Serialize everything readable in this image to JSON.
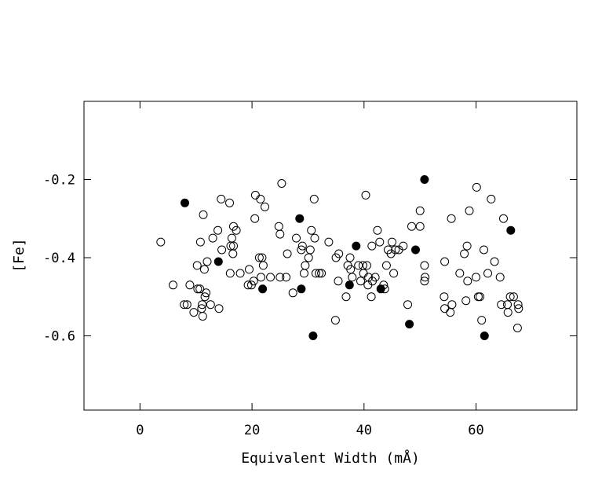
{
  "chart_data": {
    "type": "scatter",
    "title": "",
    "xlabel": "Equivalent Width (mÅ)",
    "ylabel": "[Fe]",
    "xlim": [
      -10,
      78
    ],
    "ylim": [
      -0.79,
      0.0
    ],
    "xticks": [
      0,
      20,
      40,
      60
    ],
    "yticks": [
      -0.2,
      -0.4,
      -0.6
    ],
    "xtick_labels": [
      "0",
      "20",
      "40",
      "60"
    ],
    "ytick_labels": [
      "-0.2",
      "-0.4",
      "-0.6"
    ],
    "grid": false,
    "legend": "none",
    "series": [
      {
        "marker": "open-circle",
        "points": [
          [
            3.7,
            -0.36
          ],
          [
            5.9,
            -0.47
          ],
          [
            7.9,
            -0.52
          ],
          [
            8.4,
            -0.52
          ],
          [
            8.9,
            -0.47
          ],
          [
            9.6,
            -0.54
          ],
          [
            10.2,
            -0.42
          ],
          [
            10.3,
            -0.48
          ],
          [
            10.8,
            -0.36
          ],
          [
            10.7,
            -0.48
          ],
          [
            11.0,
            -0.53
          ],
          [
            11.2,
            -0.55
          ],
          [
            11.3,
            -0.29
          ],
          [
            11.5,
            -0.43
          ],
          [
            11.1,
            -0.52
          ],
          [
            11.6,
            -0.5
          ],
          [
            11.8,
            -0.49
          ],
          [
            12.0,
            -0.41
          ],
          [
            12.6,
            -0.52
          ],
          [
            13.0,
            -0.35
          ],
          [
            13.9,
            -0.33
          ],
          [
            14.1,
            -0.53
          ],
          [
            14.5,
            -0.25
          ],
          [
            14.6,
            -0.38
          ],
          [
            16.0,
            -0.26
          ],
          [
            16.1,
            -0.44
          ],
          [
            16.2,
            -0.37
          ],
          [
            16.4,
            -0.35
          ],
          [
            16.6,
            -0.39
          ],
          [
            16.7,
            -0.37
          ],
          [
            16.7,
            -0.32
          ],
          [
            17.2,
            -0.33
          ],
          [
            17.9,
            -0.44
          ],
          [
            19.3,
            -0.47
          ],
          [
            19.5,
            -0.43
          ],
          [
            19.9,
            -0.47
          ],
          [
            20.3,
            -0.46
          ],
          [
            20.5,
            -0.3
          ],
          [
            20.6,
            -0.24
          ],
          [
            21.3,
            -0.4
          ],
          [
            21.5,
            -0.25
          ],
          [
            21.6,
            -0.45
          ],
          [
            21.8,
            -0.4
          ],
          [
            22.0,
            -0.42
          ],
          [
            22.3,
            -0.27
          ],
          [
            23.3,
            -0.45
          ],
          [
            24.8,
            -0.32
          ],
          [
            25.0,
            -0.34
          ],
          [
            25.0,
            -0.45
          ],
          [
            25.3,
            -0.21
          ],
          [
            26.1,
            -0.45
          ],
          [
            26.3,
            -0.39
          ],
          [
            27.3,
            -0.49
          ],
          [
            27.9,
            -0.35
          ],
          [
            28.8,
            -0.38
          ],
          [
            29.0,
            -0.37
          ],
          [
            29.3,
            -0.44
          ],
          [
            29.5,
            -0.42
          ],
          [
            30.1,
            -0.4
          ],
          [
            30.4,
            -0.38
          ],
          [
            30.6,
            -0.33
          ],
          [
            31.1,
            -0.25
          ],
          [
            31.2,
            -0.35
          ],
          [
            31.4,
            -0.44
          ],
          [
            32.0,
            -0.44
          ],
          [
            32.4,
            -0.44
          ],
          [
            33.7,
            -0.36
          ],
          [
            34.9,
            -0.56
          ],
          [
            35.0,
            -0.4
          ],
          [
            35.4,
            -0.46
          ],
          [
            35.5,
            -0.39
          ],
          [
            36.8,
            -0.5
          ],
          [
            37.1,
            -0.42
          ],
          [
            37.5,
            -0.4
          ],
          [
            37.6,
            -0.43
          ],
          [
            37.9,
            -0.45
          ],
          [
            39.0,
            -0.42
          ],
          [
            39.4,
            -0.46
          ],
          [
            39.8,
            -0.42
          ],
          [
            39.9,
            -0.44
          ],
          [
            40.3,
            -0.24
          ],
          [
            40.5,
            -0.42
          ],
          [
            40.7,
            -0.47
          ],
          [
            40.8,
            -0.45
          ],
          [
            41.3,
            -0.5
          ],
          [
            41.4,
            -0.37
          ],
          [
            41.5,
            -0.46
          ],
          [
            42.0,
            -0.45
          ],
          [
            42.4,
            -0.33
          ],
          [
            42.8,
            -0.36
          ],
          [
            43.5,
            -0.47
          ],
          [
            43.7,
            -0.48
          ],
          [
            44.0,
            -0.42
          ],
          [
            44.3,
            -0.38
          ],
          [
            44.8,
            -0.39
          ],
          [
            45.0,
            -0.36
          ],
          [
            45.3,
            -0.44
          ],
          [
            45.6,
            -0.38
          ],
          [
            46.2,
            -0.38
          ],
          [
            47.0,
            -0.37
          ],
          [
            47.8,
            -0.52
          ],
          [
            48.5,
            -0.32
          ],
          [
            50.0,
            -0.28
          ],
          [
            50.0,
            -0.32
          ],
          [
            50.8,
            -0.42
          ],
          [
            50.8,
            -0.46
          ],
          [
            50.9,
            -0.45
          ],
          [
            54.3,
            -0.5
          ],
          [
            54.4,
            -0.53
          ],
          [
            54.4,
            -0.41
          ],
          [
            55.4,
            -0.54
          ],
          [
            55.6,
            -0.3
          ],
          [
            55.7,
            -0.52
          ],
          [
            57.1,
            -0.44
          ],
          [
            57.9,
            -0.39
          ],
          [
            58.2,
            -0.51
          ],
          [
            58.4,
            -0.37
          ],
          [
            58.5,
            -0.46
          ],
          [
            58.8,
            -0.28
          ],
          [
            60.0,
            -0.45
          ],
          [
            60.1,
            -0.22
          ],
          [
            60.4,
            -0.5
          ],
          [
            60.7,
            -0.5
          ],
          [
            61.0,
            -0.56
          ],
          [
            61.4,
            -0.38
          ],
          [
            62.1,
            -0.44
          ],
          [
            62.7,
            -0.25
          ],
          [
            63.3,
            -0.41
          ],
          [
            64.3,
            -0.45
          ],
          [
            64.5,
            -0.52
          ],
          [
            64.9,
            -0.3
          ],
          [
            65.6,
            -0.52
          ],
          [
            65.7,
            -0.54
          ],
          [
            66.1,
            -0.5
          ],
          [
            66.7,
            -0.5
          ],
          [
            67.4,
            -0.58
          ],
          [
            67.5,
            -0.52
          ],
          [
            67.6,
            -0.53
          ]
        ]
      },
      {
        "marker": "filled-circle",
        "points": [
          [
            8.0,
            -0.26
          ],
          [
            14.0,
            -0.41
          ],
          [
            21.9,
            -0.48
          ],
          [
            28.5,
            -0.3
          ],
          [
            28.8,
            -0.48
          ],
          [
            30.9,
            -0.6
          ],
          [
            37.4,
            -0.47
          ],
          [
            38.6,
            -0.37
          ],
          [
            43.0,
            -0.48
          ],
          [
            48.1,
            -0.57
          ],
          [
            49.2,
            -0.38
          ],
          [
            50.8,
            -0.2
          ],
          [
            61.5,
            -0.6
          ],
          [
            66.2,
            -0.33
          ]
        ]
      }
    ]
  }
}
